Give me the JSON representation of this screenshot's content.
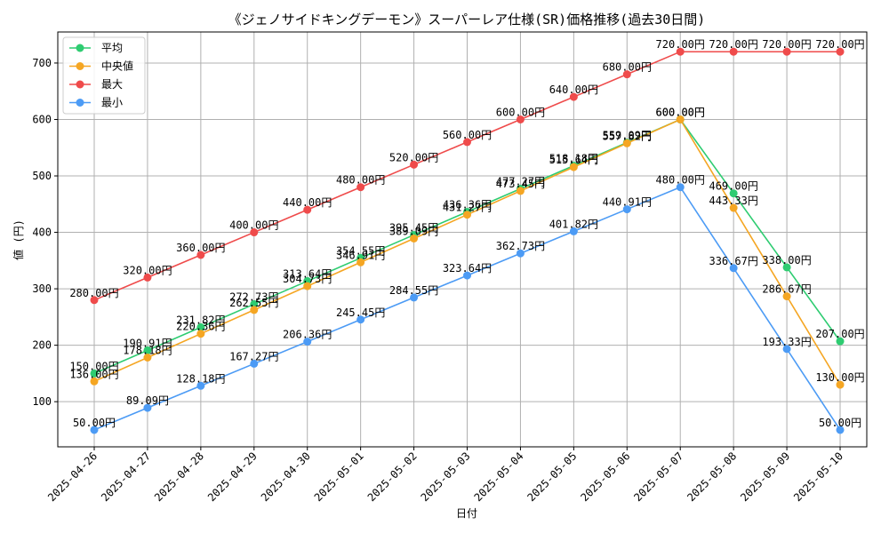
{
  "chart_data": {
    "type": "line",
    "title": "《ジェノサイドキングデーモン》スーパーレア仕様(SR)価格推移(過去30日間)",
    "xlabel": "日付",
    "ylabel": "値 (円)",
    "categories": [
      "2025-04-26",
      "2025-04-27",
      "2025-04-28",
      "2025-04-29",
      "2025-04-30",
      "2025-05-01",
      "2025-05-02",
      "2025-05-03",
      "2025-05-04",
      "2025-05-05",
      "2025-05-06",
      "2025-05-07",
      "2025-05-08",
      "2025-05-09",
      "2025-05-10"
    ],
    "ylim": [
      20,
      755
    ],
    "yticks": [
      100,
      200,
      300,
      400,
      500,
      600,
      700
    ],
    "grid": true,
    "legend_position": "top-left",
    "series": [
      {
        "name": "平均",
        "color": "#2ecc71",
        "values": [
          150.0,
          190.91,
          231.82,
          272.73,
          313.64,
          354.55,
          395.45,
          436.36,
          477.27,
          518.18,
          559.09,
          600.0,
          469.0,
          338.0,
          207.0
        ],
        "labels": [
          "150.00円",
          "190.91円",
          "231.82円",
          "272.73円",
          "313.64円",
          "354.55円",
          "395.45円",
          "436.36円",
          "477.27円",
          "518.18円",
          "559.09円",
          "600.00円",
          "469.00円",
          "338.00円",
          "207.00円"
        ]
      },
      {
        "name": "中央値",
        "color": "#f5a623",
        "values": [
          136.0,
          178.18,
          220.36,
          262.55,
          304.73,
          346.91,
          389.09,
          431.27,
          473.45,
          515.64,
          557.82,
          600.0,
          443.33,
          286.67,
          130.0
        ],
        "labels": [
          "136.00円",
          "178.18円",
          "220.36円",
          "262.55円",
          "304.73円",
          "346.91円",
          "389.09円",
          "431.27円",
          "473.45円",
          "515.64円",
          "557.82円",
          "600.00円",
          "443.33円",
          "286.67円",
          "130.00円"
        ]
      },
      {
        "name": "最大",
        "color": "#ef4b4b",
        "values": [
          280,
          320,
          360,
          400,
          440,
          480,
          520,
          560,
          600,
          640,
          680,
          720,
          720,
          720,
          720
        ],
        "labels": [
          "280.00円",
          "320.00円",
          "360.00円",
          "400.00円",
          "440.00円",
          "480.00円",
          "520.00円",
          "560.00円",
          "600.00円",
          "640.00円",
          "680.00円",
          "720.00円",
          "720.00円",
          "720.00円",
          "720.00円"
        ]
      },
      {
        "name": "最小",
        "color": "#4c9bf5",
        "values": [
          50.0,
          89.09,
          128.18,
          167.27,
          206.36,
          245.45,
          284.55,
          323.64,
          362.73,
          401.82,
          440.91,
          480.0,
          336.67,
          193.33,
          50.0
        ],
        "labels": [
          "50.00円",
          "89.09円",
          "128.18円",
          "167.27円",
          "206.36円",
          "245.45円",
          "284.55円",
          "323.64円",
          "362.73円",
          "401.82円",
          "440.91円",
          "480.00円",
          "336.67円",
          "193.33円",
          "50.00円"
        ]
      }
    ]
  }
}
